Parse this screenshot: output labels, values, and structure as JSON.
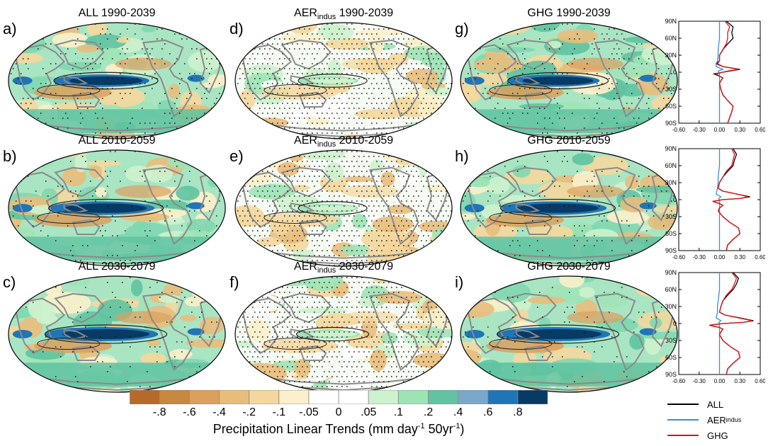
{
  "panels": [
    {
      "letter": "a)",
      "prefix": "ALL",
      "sub": "",
      "period": "1990-2039",
      "intensity": 0.75,
      "stipple": 0.3
    },
    {
      "letter": "d)",
      "prefix": "AER",
      "sub": "indus",
      "period": "1990-2039",
      "intensity": 0.25,
      "stipple": 0.85
    },
    {
      "letter": "g)",
      "prefix": "GHG",
      "sub": "",
      "period": "1990-2039",
      "intensity": 0.7,
      "stipple": 0.3
    },
    {
      "letter": "b)",
      "prefix": "ALL",
      "sub": "",
      "period": "2010-2059",
      "intensity": 0.9,
      "stipple": 0.18
    },
    {
      "letter": "e)",
      "prefix": "AER",
      "sub": "indus",
      "period": "2010-2059",
      "intensity": 0.25,
      "stipple": 0.85
    },
    {
      "letter": "h)",
      "prefix": "GHG",
      "sub": "",
      "period": "2010-2059",
      "intensity": 0.9,
      "stipple": 0.18
    },
    {
      "letter": "c)",
      "prefix": "ALL",
      "sub": "",
      "period": "2030-2079",
      "intensity": 1.0,
      "stipple": 0.12
    },
    {
      "letter": "f)",
      "prefix": "AER",
      "sub": "indus",
      "period": "2030-2079",
      "intensity": 0.3,
      "stipple": 0.85
    },
    {
      "letter": "i)",
      "prefix": "GHG",
      "sub": "",
      "period": "2030-2079",
      "intensity": 1.0,
      "stipple": 0.12
    }
  ],
  "colorbar": {
    "colors": [
      "#b66a2a",
      "#c98740",
      "#dba05e",
      "#e8bd7c",
      "#f4d79d",
      "#fbf0cb",
      "#ffffff",
      "#ffffff",
      "#cdf2cd",
      "#9ee3b6",
      "#62c3a3",
      "#7ba8c9",
      "#1f75b6",
      "#073a64"
    ],
    "labels": [
      "-.8",
      "-.6",
      "-.4",
      "-.2",
      "-.1",
      "-.05",
      "0",
      ".05",
      ".1",
      ".2",
      ".4",
      ".6",
      ".8"
    ],
    "title_main": "Precipitation Linear Trends (mm day",
    "title_sup1": "-1",
    "title_mid": " 50yr",
    "title_sup2": "-1",
    "title_end": ")"
  },
  "chart_data": {
    "type": "line",
    "y_tick_labels": [
      "90N",
      "60N",
      "30N",
      "0",
      "30S",
      "60S",
      "90S"
    ],
    "x_tick_labels": [
      "-0.60",
      "-0.30",
      "0.00",
      "0.30",
      "0.60"
    ],
    "xlim": [
      -0.6,
      0.6
    ],
    "ylim": [
      -90,
      90
    ],
    "lat": [
      90,
      80,
      70,
      60,
      50,
      40,
      30,
      20,
      15,
      10,
      5,
      2,
      0,
      -3,
      -7,
      -10,
      -15,
      -20,
      -30,
      -40,
      -50,
      -60,
      -70,
      -80,
      -90
    ],
    "profiles": [
      {
        "period": "1990-2039",
        "series": [
          {
            "name": "ALL",
            "color": "#000000",
            "values": [
              0.1,
              0.2,
              0.18,
              0.2,
              0.12,
              0.05,
              0.0,
              0.0,
              -0.05,
              0.05,
              0.3,
              0.15,
              0.05,
              -0.08,
              0.0,
              0.05,
              0.02,
              0.0,
              0.02,
              0.05,
              0.12,
              0.2,
              0.18,
              0.15,
              0.12
            ]
          },
          {
            "name": "AER",
            "sub": "indus",
            "color": "#3a8be0",
            "values": [
              0.0,
              0.0,
              0.0,
              0.0,
              -0.01,
              -0.02,
              -0.02,
              -0.03,
              -0.05,
              -0.05,
              0.05,
              -0.02,
              -0.01,
              0.0,
              0.0,
              0.0,
              0.0,
              0.0,
              0.0,
              0.0,
              0.0,
              0.0,
              0.0,
              0.0,
              0.0
            ]
          },
          {
            "name": "GHG",
            "color": "#e01010",
            "values": [
              0.08,
              0.15,
              0.12,
              0.12,
              0.1,
              0.05,
              0.0,
              0.0,
              -0.03,
              0.05,
              0.28,
              0.12,
              0.05,
              -0.05,
              0.0,
              0.05,
              0.02,
              0.0,
              0.02,
              0.05,
              0.12,
              0.2,
              0.18,
              0.15,
              0.12
            ]
          }
        ]
      },
      {
        "period": "2010-2059",
        "series": [
          {
            "name": "ALL",
            "color": "#000000",
            "values": [
              0.2,
              0.25,
              0.22,
              0.2,
              0.12,
              0.05,
              0.0,
              -0.02,
              0.05,
              0.25,
              0.45,
              0.3,
              0.05,
              -0.1,
              0.0,
              0.05,
              0.0,
              -0.02,
              0.05,
              0.15,
              0.28,
              0.3,
              0.2,
              0.12,
              0.1
            ]
          },
          {
            "name": "AER",
            "sub": "indus",
            "color": "#3a8be0",
            "values": [
              0.0,
              0.0,
              0.0,
              0.0,
              -0.01,
              -0.02,
              -0.02,
              -0.03,
              -0.04,
              -0.05,
              0.02,
              -0.01,
              0.0,
              0.0,
              0.0,
              0.0,
              0.0,
              0.0,
              0.0,
              0.0,
              0.0,
              0.0,
              0.0,
              0.0,
              0.0
            ]
          },
          {
            "name": "GHG",
            "color": "#e01010",
            "values": [
              0.18,
              0.22,
              0.2,
              0.18,
              0.1,
              0.05,
              0.0,
              -0.02,
              0.05,
              0.25,
              0.42,
              0.3,
              0.05,
              -0.1,
              0.0,
              0.05,
              0.0,
              -0.02,
              0.05,
              0.15,
              0.28,
              0.3,
              0.2,
              0.12,
              0.1
            ]
          }
        ]
      },
      {
        "period": "2030-2079",
        "series": [
          {
            "name": "ALL",
            "color": "#000000",
            "values": [
              0.2,
              0.28,
              0.25,
              0.2,
              0.12,
              0.05,
              0.02,
              0.0,
              0.08,
              0.3,
              0.5,
              0.35,
              0.05,
              -0.15,
              0.0,
              0.05,
              0.02,
              0.0,
              0.05,
              0.15,
              0.28,
              0.3,
              0.2,
              0.12,
              0.1
            ]
          },
          {
            "name": "AER",
            "sub": "indus",
            "color": "#3a8be0",
            "values": [
              0.0,
              0.0,
              0.0,
              0.0,
              -0.01,
              -0.02,
              -0.03,
              -0.03,
              -0.04,
              -0.05,
              0.02,
              -0.01,
              0.0,
              0.0,
              0.0,
              0.0,
              0.0,
              0.0,
              0.0,
              0.0,
              0.0,
              0.0,
              0.0,
              0.0,
              0.0
            ]
          },
          {
            "name": "GHG",
            "color": "#e01010",
            "values": [
              0.18,
              0.25,
              0.22,
              0.18,
              0.1,
              0.05,
              0.02,
              0.0,
              0.08,
              0.28,
              0.48,
              0.35,
              0.05,
              -0.15,
              0.0,
              0.05,
              0.02,
              0.0,
              0.05,
              0.15,
              0.28,
              0.3,
              0.2,
              0.12,
              0.1
            ]
          }
        ]
      }
    ]
  },
  "legend": [
    {
      "label": "ALL",
      "sub": "",
      "color": "#000000"
    },
    {
      "label": "AER",
      "sub": "indus",
      "color": "#3a8be0"
    },
    {
      "label": "GHG",
      "sub": "",
      "color": "#e01010"
    }
  ]
}
